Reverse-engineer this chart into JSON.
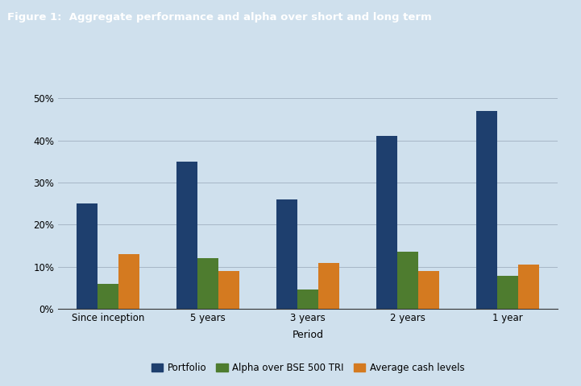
{
  "title": "Figure 1:  Aggregate performance and alpha over short and long term",
  "categories": [
    "Since inception",
    "5 years",
    "3 years",
    "2 years",
    "1 year"
  ],
  "series": {
    "Portfolio": [
      0.25,
      0.35,
      0.26,
      0.41,
      0.47
    ],
    "Alpha over BSE 500 TRI": [
      0.06,
      0.12,
      0.045,
      0.135,
      0.078
    ],
    "Average cash levels": [
      0.13,
      0.09,
      0.108,
      0.09,
      0.105
    ]
  },
  "colors": {
    "Portfolio": "#1e3f6e",
    "Alpha over BSE 500 TRI": "#4e7c2f",
    "Average cash levels": "#d47a20"
  },
  "xlabel": "Period",
  "ylim": [
    0,
    0.55
  ],
  "yticks": [
    0.0,
    0.1,
    0.2,
    0.3,
    0.4,
    0.5
  ],
  "ytick_labels": [
    "0%",
    "10%",
    "20%",
    "30%",
    "40%",
    "50%"
  ],
  "chart_bg": "#cfe0ed",
  "outer_bg": "#cfe0ed",
  "header_color": "#1e3f6e",
  "header_text_color": "#ffffff",
  "border_color": "#aabbcc",
  "title_fontsize": 9.5,
  "axis_label_fontsize": 9,
  "tick_fontsize": 8.5,
  "legend_fontsize": 8.5,
  "bar_width": 0.21
}
